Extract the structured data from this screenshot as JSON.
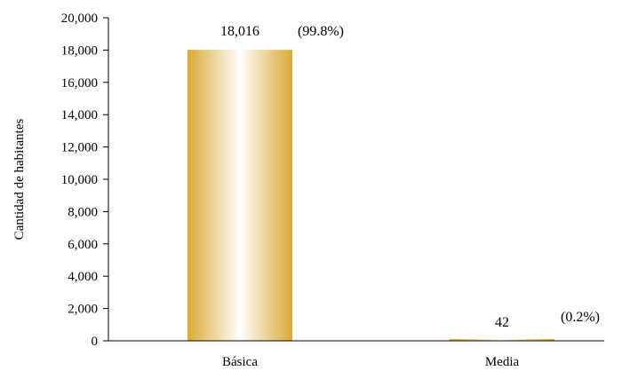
{
  "chart_data": {
    "type": "bar",
    "categories": [
      "Básica",
      "Media"
    ],
    "values": [
      18016,
      42
    ],
    "value_labels": [
      "18,016",
      "42"
    ],
    "percent_labels": [
      "(99.8%)",
      "(0.2%)"
    ],
    "title": "",
    "xlabel": "",
    "ylabel": "Cantidad de habitantes",
    "ylim": [
      0,
      20000
    ],
    "yticks": [
      0,
      2000,
      4000,
      6000,
      8000,
      10000,
      12000,
      14000,
      16000,
      18000,
      20000
    ],
    "ytick_labels": [
      "0",
      "2,000",
      "4,000",
      "6,000",
      "8,000",
      "10,000",
      "12,000",
      "14,000",
      "16,000",
      "18,000",
      "20,000"
    ],
    "grid": false,
    "legend": "none",
    "colors": {
      "bar_edge": "#d9a934",
      "bar_center": "#ffffff",
      "axis": "#000000"
    }
  }
}
